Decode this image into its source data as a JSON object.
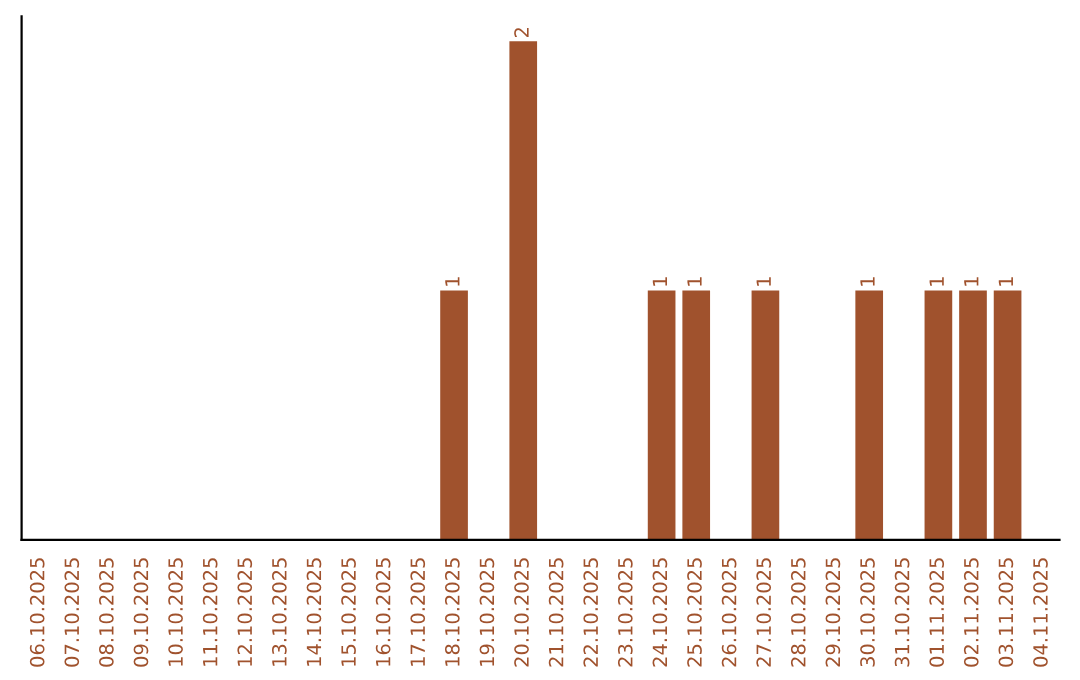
{
  "chart_data": {
    "type": "bar",
    "categories": [
      "06.10.2025",
      "07.10.2025",
      "08.10.2025",
      "09.10.2025",
      "10.10.2025",
      "11.10.2025",
      "12.10.2025",
      "13.10.2025",
      "14.10.2025",
      "15.10.2025",
      "16.10.2025",
      "17.10.2025",
      "18.10.2025",
      "19.10.2025",
      "20.10.2025",
      "21.10.2025",
      "22.10.2025",
      "23.10.2025",
      "24.10.2025",
      "25.10.2025",
      "26.10.2025",
      "27.10.2025",
      "28.10.2025",
      "29.10.2025",
      "30.10.2025",
      "31.10.2025",
      "01.11.2025",
      "02.11.2025",
      "03.11.2025",
      "04.11.2025"
    ],
    "values": [
      null,
      null,
      null,
      null,
      null,
      null,
      null,
      null,
      null,
      null,
      null,
      null,
      1,
      null,
      2,
      null,
      null,
      null,
      1,
      1,
      null,
      1,
      null,
      null,
      1,
      null,
      1,
      1,
      1,
      null
    ],
    "value_labels": [
      null,
      null,
      null,
      null,
      null,
      null,
      null,
      null,
      null,
      null,
      null,
      null,
      "1",
      null,
      "2",
      null,
      null,
      null,
      "1",
      "1",
      null,
      "1",
      null,
      null,
      "1",
      null,
      "1",
      "1",
      "1",
      null
    ],
    "color": "#a0522d",
    "tick_labels": "x",
    "grid": false,
    "legend": false
  }
}
